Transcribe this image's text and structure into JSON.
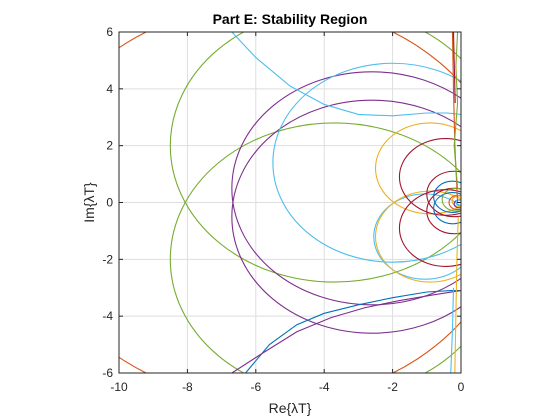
{
  "chart_data": {
    "type": "line",
    "title": "Part E: Stability Region",
    "xlabel": "Re{λT}",
    "ylabel": "Im{λT}",
    "xlim": [
      -10,
      0
    ],
    "ylim": [
      -6,
      6
    ],
    "xticks": [
      -10,
      -8,
      -6,
      -4,
      -2,
      0
    ],
    "yticks": [
      -6,
      -4,
      -2,
      0,
      2,
      4,
      6
    ],
    "xtick_labels": [
      "-10",
      "-8",
      "-6",
      "-4",
      "-2",
      "0"
    ],
    "ytick_labels": [
      "-6",
      "-4",
      "-2",
      "0",
      "2",
      "4",
      "6"
    ],
    "grid": true,
    "series": [
      {
        "kind": "circle",
        "color": "#D95319",
        "center": [
          -5.6,
          0
        ],
        "radius": 7.0
      },
      {
        "kind": "circle",
        "color": "#77AC30",
        "center": [
          -3.7,
          2.0
        ],
        "radius": 4.8
      },
      {
        "kind": "circle",
        "color": "#77AC30",
        "center": [
          -3.7,
          -2.0
        ],
        "radius": 4.8
      },
      {
        "kind": "circle",
        "color": "#7E2F8E",
        "center": [
          -2.6,
          0.5
        ],
        "radius": 4.1
      },
      {
        "kind": "circle",
        "color": "#7E2F8E",
        "center": [
          -2.6,
          -0.5
        ],
        "radius": 4.1
      },
      {
        "kind": "circle",
        "color": "#4DBEEE",
        "center": [
          -2.0,
          1.4
        ],
        "radius": 3.5
      },
      {
        "kind": "circle",
        "color": "#4DBEEE",
        "center": [
          -1.05,
          -1.2
        ],
        "radius": 1.5
      },
      {
        "kind": "circle",
        "color": "#EDB120",
        "center": [
          -0.9,
          1.2
        ],
        "radius": 1.6
      },
      {
        "kind": "circle",
        "color": "#EDB120",
        "center": [
          -0.9,
          -1.2
        ],
        "radius": 1.6
      },
      {
        "kind": "circle",
        "color": "#A2142F",
        "center": [
          -0.45,
          0.9
        ],
        "radius": 1.35
      },
      {
        "kind": "circle",
        "color": "#A2142F",
        "center": [
          -0.45,
          -0.9
        ],
        "radius": 1.35
      },
      {
        "kind": "circle",
        "color": "#A2142F",
        "center": [
          -0.2,
          0.3
        ],
        "radius": 0.8
      },
      {
        "kind": "circle",
        "color": "#A2142F",
        "center": [
          -0.2,
          -0.3
        ],
        "radius": 0.8
      },
      {
        "kind": "circle",
        "color": "#0072BD",
        "center": [
          -0.25,
          0.2
        ],
        "radius": 0.55
      },
      {
        "kind": "circle",
        "color": "#0072BD",
        "center": [
          -0.25,
          -0.2
        ],
        "radius": 0.55
      },
      {
        "kind": "circle",
        "color": "#77AC30",
        "center": [
          -0.15,
          0.1
        ],
        "radius": 0.4
      },
      {
        "kind": "circle",
        "color": "#D95319",
        "center": [
          -0.1,
          0.0
        ],
        "radius": 0.25
      },
      {
        "kind": "circle",
        "color": "#EDB120",
        "center": [
          -0.08,
          0.05
        ],
        "radius": 0.18
      },
      {
        "kind": "circle",
        "color": "#7E2F8E",
        "center": [
          -0.06,
          -0.05
        ],
        "radius": 0.14
      },
      {
        "kind": "circle",
        "color": "#4DBEEE",
        "center": [
          -0.05,
          0.0
        ],
        "radius": 0.1
      },
      {
        "kind": "path",
        "color": "#4DBEEE",
        "points": [
          [
            -6.7,
            6
          ],
          [
            -6.0,
            5.1
          ],
          [
            -5.0,
            4.1
          ],
          [
            -4.0,
            3.45
          ],
          [
            -3.0,
            3.1
          ],
          [
            -2.0,
            3.05
          ],
          [
            -1.0,
            3.15
          ],
          [
            -0.4,
            3.15
          ],
          [
            0,
            3.1
          ]
        ]
      },
      {
        "kind": "path",
        "color": "#0072BD",
        "points": [
          [
            -6.3,
            -6
          ],
          [
            -5.6,
            -5.0
          ],
          [
            -4.8,
            -4.3
          ],
          [
            -4.0,
            -3.9
          ],
          [
            -3.0,
            -3.6
          ],
          [
            -2.0,
            -3.35
          ],
          [
            -1.0,
            -3.15
          ],
          [
            -0.3,
            -3.1
          ],
          [
            0,
            -3.1
          ]
        ]
      },
      {
        "kind": "path",
        "color": "#7E2F8E",
        "points": [
          [
            -6.7,
            -6
          ],
          [
            -5.8,
            -5.3
          ],
          [
            -4.8,
            -4.55
          ],
          [
            -3.8,
            -4.05
          ],
          [
            -2.8,
            -3.7
          ],
          [
            -1.8,
            -3.45
          ],
          [
            -0.8,
            -3.25
          ],
          [
            0,
            -3.1
          ]
        ]
      },
      {
        "kind": "path",
        "color": "#D95319",
        "points": [
          [
            -0.25,
            6
          ],
          [
            -0.22,
            4.0
          ],
          [
            -0.18,
            2.0
          ],
          [
            -0.12,
            0.5
          ],
          [
            -0.1,
            0
          ]
        ]
      },
      {
        "kind": "path",
        "color": "#A2142F",
        "points": [
          [
            -0.22,
            6
          ],
          [
            -0.2,
            5.0
          ],
          [
            -0.17,
            3.5
          ]
        ]
      },
      {
        "kind": "path",
        "color": "#EDB120",
        "points": [
          [
            -0.18,
            -6
          ],
          [
            -0.15,
            -4.0
          ],
          [
            -0.12,
            -2.0
          ],
          [
            -0.08,
            -0.5
          ]
        ]
      },
      {
        "kind": "path",
        "color": "#4DBEEE",
        "points": [
          [
            -0.3,
            -6
          ],
          [
            -0.25,
            -4.5
          ],
          [
            -0.22,
            -3.0
          ]
        ]
      },
      {
        "kind": "path",
        "color": "#77AC30",
        "points": [
          [
            -0.1,
            6
          ],
          [
            -0.15,
            4.8
          ],
          [
            -0.1,
            3.5
          ],
          [
            -0.2,
            2.0
          ],
          [
            -0.1,
            0.5
          ]
        ]
      }
    ]
  }
}
